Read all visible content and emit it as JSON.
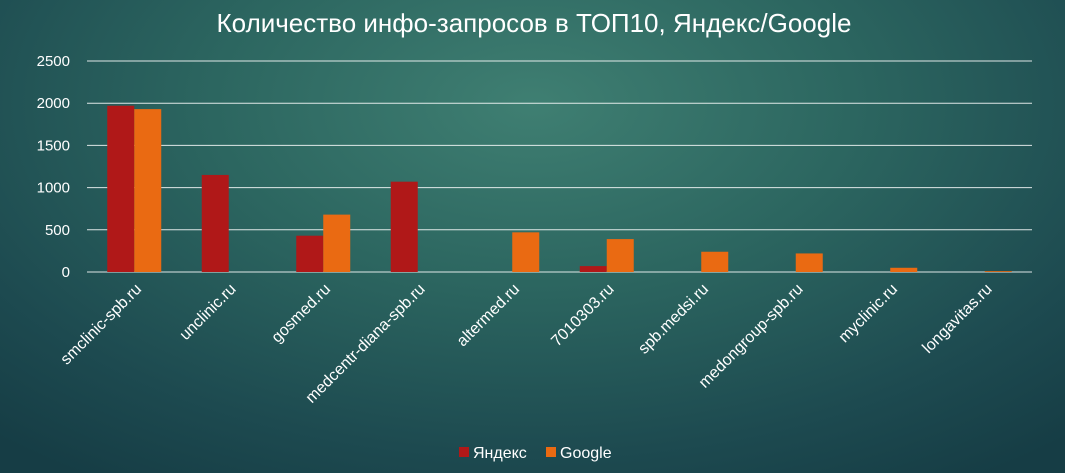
{
  "chart_data": {
    "type": "bar",
    "title": "Количество инфо-запросов в ТОП10, Яндекс/Google",
    "xlabel": "",
    "ylabel": "",
    "categories": [
      "smclinic-spb.ru",
      "unclinic.ru",
      "gosmed.ru",
      "medcentr-diana-spb.ru",
      "altermed.ru",
      "7010303.ru",
      "spb.medsi.ru",
      "medongroup-spb.ru",
      "myclinic.ru",
      "longavitas.ru"
    ],
    "series": [
      {
        "name": "Яндекс",
        "color": "#b01818",
        "values": [
          1970,
          1150,
          430,
          1070,
          0,
          70,
          0,
          0,
          0,
          0
        ]
      },
      {
        "name": "Google",
        "color": "#ea6a12",
        "values": [
          1930,
          0,
          680,
          0,
          470,
          390,
          240,
          220,
          50,
          10
        ]
      }
    ],
    "ylim": [
      0,
      2500
    ],
    "yticks": [
      0,
      500,
      1000,
      1500,
      2000,
      2500
    ],
    "grid": true,
    "legend_position": "bottom-center"
  }
}
